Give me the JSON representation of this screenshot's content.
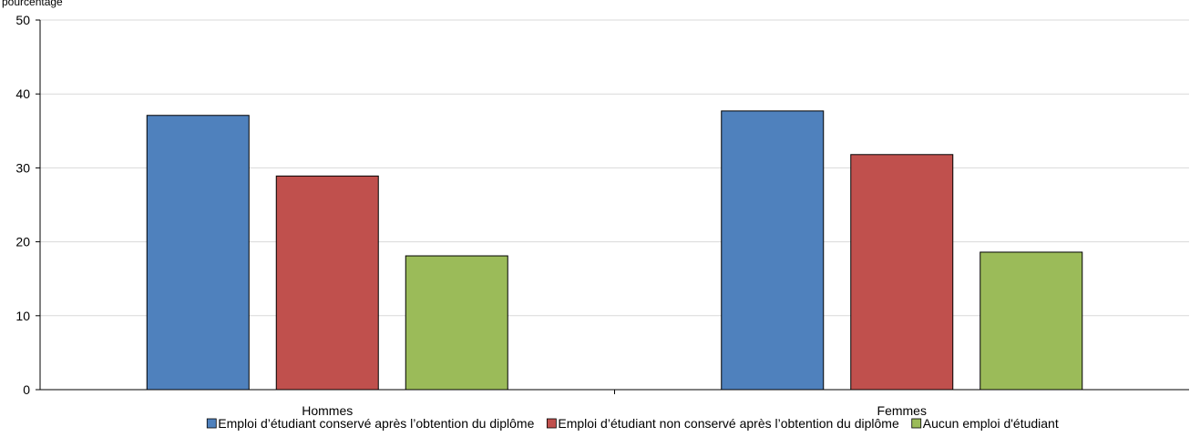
{
  "chart_data": {
    "type": "bar",
    "ylabel": "pourcentage",
    "ylim": [
      0,
      50
    ],
    "yticks": [
      0,
      10,
      20,
      30,
      40,
      50
    ],
    "grid": true,
    "legend_position": "bottom",
    "categories": [
      "Hommes",
      "Femmes"
    ],
    "series": [
      {
        "name": "Emploi d’étudiant conservé après l’obtention du diplôme",
        "color": "#4f81bd",
        "values": [
          37.1,
          37.7
        ]
      },
      {
        "name": "Emploi d’étudiant non conservé après l’obtention du diplôme",
        "color": "#c0504d",
        "values": [
          28.9,
          31.8
        ]
      },
      {
        "name": "Aucun emploi d'étudiant",
        "color": "#9bbb59",
        "values": [
          18.1,
          18.6
        ]
      }
    ]
  }
}
